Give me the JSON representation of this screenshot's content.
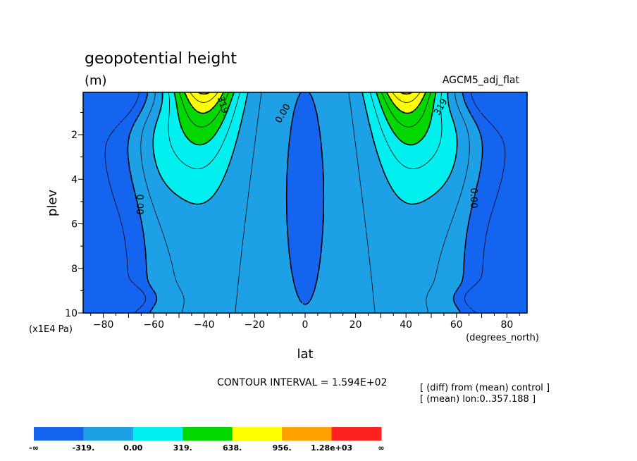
{
  "chart_data": {
    "type": "contour",
    "title": "geopotential height",
    "units": "(m)",
    "dataset": "AGCM5_adj_flat",
    "xlabel": "lat",
    "xunits": "(degrees_north)",
    "ylabel": "plev",
    "yunits": "(x1E4 Pa)",
    "xlim": [
      -88,
      88
    ],
    "ylim": [
      0.1,
      10
    ],
    "y_inverted": true,
    "xticks": [
      "-80",
      "-60",
      "-40",
      "-20",
      "0",
      "20",
      "40",
      "60",
      "80"
    ],
    "yticks": [
      "2",
      "4",
      "6",
      "8",
      "10"
    ],
    "contour_interval_text": "CONTOUR INTERVAL = 1.594E+02",
    "notes": [
      "[ (diff) from (mean) control ]",
      "[ (mean) lon:0..357.188 ]"
    ],
    "contour_labels": [
      "319.",
      "0.00",
      "0.00",
      "0.00",
      "319."
    ],
    "fields": {
      "background": -159,
      "blobs": [
        {
          "lat": -90,
          "plev": 0.1,
          "w": 22,
          "h": 0.85,
          "value": -400
        },
        {
          "lat": 90,
          "plev": 0.1,
          "w": 22,
          "h": 0.85,
          "value": -400
        },
        {
          "lat": -75,
          "plev": 9.35,
          "w": 10,
          "h": 0.35,
          "value": -290
        },
        {
          "lat": 75,
          "plev": 9.35,
          "w": 10,
          "h": 0.35,
          "value": -290
        },
        {
          "lat": -60,
          "plev": 2.4,
          "w": 12,
          "h": 2.1,
          "value": 240
        },
        {
          "lat": 60,
          "plev": 2.4,
          "w": 12,
          "h": 2.1,
          "value": 240
        },
        {
          "lat": 0,
          "plev": 4.8,
          "w": 11,
          "h": 7.2,
          "value": -200
        }
      ],
      "jets": [
        {
          "lat": -40,
          "plev": 0.1,
          "value": 1150,
          "wx": 9,
          "hy": 2.3
        },
        {
          "lat": 40,
          "plev": 0.1,
          "value": 1150,
          "wx": 9,
          "hy": 2.3
        }
      ],
      "ramps": [
        {
          "center": -64,
          "dir": -1,
          "width": 4,
          "value": 390
        },
        {
          "center": 64,
          "dir": 1,
          "width": 4,
          "value": 390
        }
      ]
    },
    "legend": {
      "labels": [
        "-∞",
        "-319.",
        "0.00",
        "319.",
        "638.",
        "956.",
        "1.28e+03",
        "∞"
      ],
      "colors": [
        "#1464f0",
        "#1ea0e6",
        "#00f0f0",
        "#00d800",
        "#ffff00",
        "#ffa000",
        "#ff2020"
      ],
      "breaks": [
        -319,
        0,
        319,
        638,
        956,
        1280
      ]
    }
  }
}
